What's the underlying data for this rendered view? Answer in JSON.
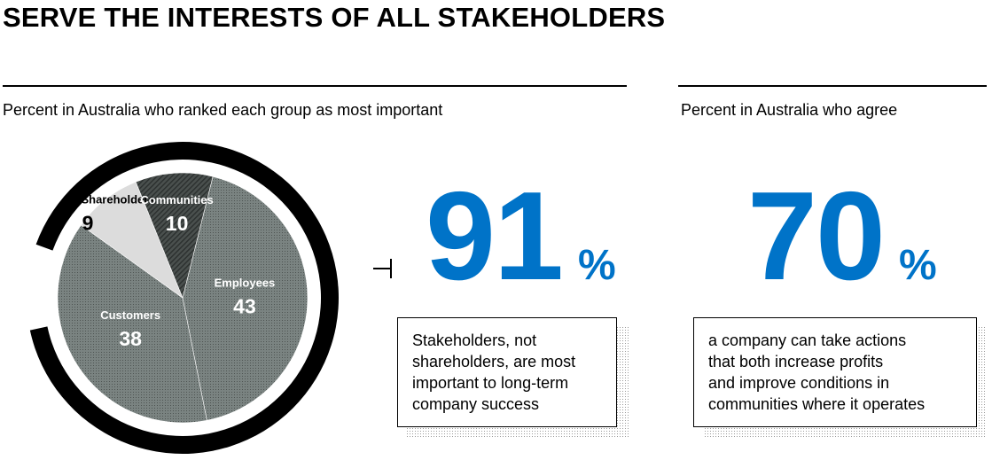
{
  "page": {
    "title": "SERVE THE INTERESTS OF ALL STAKEHOLDERS"
  },
  "left_panel": {
    "subtitle": "Percent in Australia who ranked each group as most important"
  },
  "right_panel": {
    "subtitle": "Percent in Australia who agree"
  },
  "stat1": {
    "value": "91",
    "unit": "%",
    "note_lines": [
      "Stakeholders, not",
      "shareholders, are most",
      "important to long-term",
      "company success"
    ]
  },
  "stat2": {
    "value": "70",
    "unit": "%",
    "note_lines": [
      "a company can take actions",
      "that both increase profits",
      "and improve conditions in",
      "communities where it operates"
    ]
  },
  "colors": {
    "accent_blue": "#0073c8",
    "ring": "#000000",
    "employees": "#727b79",
    "customers": "#727b79",
    "communities": "#3f4442",
    "shareholders": "#dcdcdc"
  },
  "chart_data": {
    "type": "pie",
    "title": "Percent in Australia who ranked each group as most important",
    "slices": [
      {
        "label": "Employees",
        "value": 43
      },
      {
        "label": "Customers",
        "value": 38
      },
      {
        "label": "Shareholders",
        "value": 9
      },
      {
        "label": "Communities",
        "value": 10
      }
    ]
  }
}
